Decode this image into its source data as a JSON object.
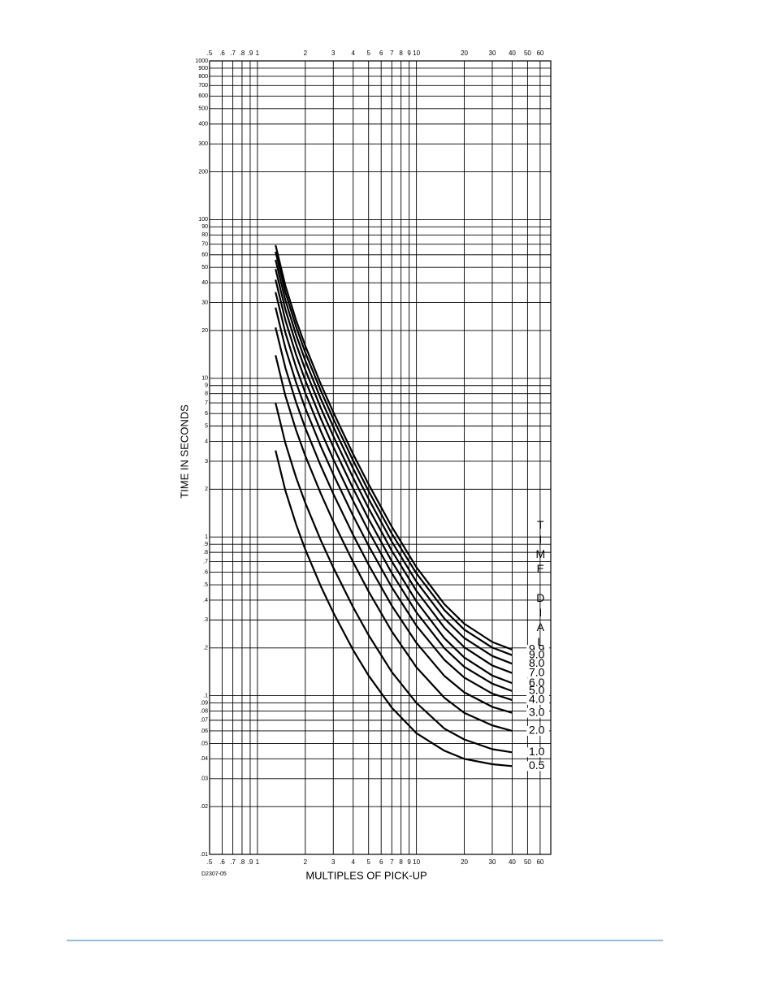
{
  "chart_data": {
    "type": "line",
    "x_label": "MULTIPLES OF PICK-UP",
    "y_label": "TIME IN SECONDS",
    "figure_code": "D2307-05",
    "legend_title": "TIME DIAL",
    "xscale": "log",
    "yscale": "log",
    "grid": true,
    "xlim": [
      0.5,
      70
    ],
    "ylim": [
      0.01,
      1000
    ],
    "xticks": [
      {
        "value": 0.5,
        "label": ".5"
      },
      {
        "value": 0.6,
        "label": ".6"
      },
      {
        "value": 0.7,
        "label": ".7"
      },
      {
        "value": 0.8,
        "label": ".8"
      },
      {
        "value": 0.9,
        "label": ".9"
      },
      1,
      2,
      3,
      4,
      5,
      6,
      7,
      8,
      9,
      10,
      20,
      30,
      40,
      50,
      60
    ],
    "yticks": [
      1000,
      900,
      800,
      700,
      600,
      500,
      400,
      300,
      200,
      100,
      90,
      80,
      70,
      60,
      50,
      40,
      30,
      20,
      10,
      9,
      8,
      7,
      6,
      5,
      4,
      3,
      2,
      1,
      {
        "value": 0.9,
        "label": ".9"
      },
      {
        "value": 0.8,
        "label": ".8"
      },
      {
        "value": 0.7,
        "label": ".7"
      },
      {
        "value": 0.6,
        "label": ".6"
      },
      {
        "value": 0.5,
        "label": ".5"
      },
      {
        "value": 0.4,
        "label": ".4"
      },
      {
        "value": 0.3,
        "label": ".3"
      },
      {
        "value": 0.2,
        "label": ".2"
      },
      {
        "value": 0.1,
        "label": ".1"
      },
      {
        "value": 0.09,
        "label": ".09"
      },
      {
        "value": 0.08,
        "label": ".08"
      },
      {
        "value": 0.07,
        "label": ".07"
      },
      {
        "value": 0.06,
        "label": ".06"
      },
      {
        "value": 0.05,
        "label": ".05"
      },
      {
        "value": 0.04,
        "label": ".04"
      },
      {
        "value": 0.03,
        "label": ".03"
      },
      {
        "value": 0.02,
        "label": ".02"
      },
      {
        "value": 0.01,
        "label": ".01"
      }
    ],
    "x": [
      1.3,
      1.5,
      1.75,
      2,
      2.5,
      3,
      4,
      5,
      7,
      10,
      15,
      20,
      30,
      40
    ],
    "series": [
      {
        "name": "9.9",
        "color": "#000000",
        "values": [
          69.0,
          38.2,
          23.2,
          16.0,
          9.21,
          6.11,
          3.33,
          2.15,
          1.16,
          0.645,
          0.377,
          0.284,
          0.218,
          0.195
        ]
      },
      {
        "name": "9.0",
        "color": "#000000",
        "values": [
          62.8,
          34.7,
          21.1,
          14.55,
          8.38,
          5.55,
          3.03,
          1.95,
          1.05,
          0.59,
          0.346,
          0.261,
          0.201,
          0.18
        ]
      },
      {
        "name": "8.0",
        "color": "#000000",
        "values": [
          55.8,
          30.9,
          18.75,
          12.94,
          7.45,
          4.94,
          2.7,
          1.74,
          0.935,
          0.523,
          0.306,
          0.231,
          0.178,
          0.159
        ]
      },
      {
        "name": "7.0",
        "color": "#000000",
        "values": [
          48.8,
          27.0,
          16.41,
          11.32,
          6.52,
          4.32,
          2.36,
          1.52,
          0.818,
          0.458,
          0.268,
          0.202,
          0.155,
          0.139
        ]
      },
      {
        "name": "6.0",
        "color": "#000000",
        "values": [
          41.8,
          23.14,
          14.06,
          9.7,
          5.59,
          3.7,
          2.02,
          1.3,
          0.702,
          0.393,
          0.23,
          0.174,
          0.134,
          0.12
        ]
      },
      {
        "name": "5.0",
        "color": "#000000",
        "values": [
          34.9,
          19.29,
          11.73,
          8.09,
          4.66,
          3.09,
          1.69,
          1.09,
          0.592,
          0.335,
          0.199,
          0.152,
          0.119,
          0.107
        ]
      },
      {
        "name": "4.0",
        "color": "#000000",
        "values": [
          27.9,
          15.44,
          9.39,
          6.48,
          3.74,
          2.48,
          1.36,
          0.882,
          0.482,
          0.276,
          0.168,
          0.13,
          0.103,
          0.094
        ]
      },
      {
        "name": "3.0",
        "color": "#000000",
        "values": [
          20.9,
          11.59,
          7.05,
          4.87,
          2.81,
          1.87,
          1.03,
          0.669,
          0.369,
          0.215,
          0.133,
          0.105,
          0.085,
          0.078
        ]
      },
      {
        "name": "2.0",
        "color": "#000000",
        "values": [
          13.97,
          7.73,
          4.71,
          3.25,
          1.88,
          1.25,
          0.694,
          0.454,
          0.254,
          0.151,
          0.097,
          0.078,
          0.065,
          0.06
        ]
      },
      {
        "name": "1.0",
        "color": "#000000",
        "values": [
          7.0,
          3.88,
          2.37,
          1.64,
          0.955,
          0.641,
          0.361,
          0.241,
          0.141,
          0.09,
          0.062,
          0.053,
          0.046,
          0.044
        ]
      },
      {
        "name": "0.5",
        "color": "#000000",
        "values": [
          3.51,
          1.95,
          1.2,
          0.834,
          0.491,
          0.334,
          0.194,
          0.134,
          0.084,
          0.058,
          0.045,
          0.04,
          0.037,
          0.036
        ]
      }
    ]
  }
}
